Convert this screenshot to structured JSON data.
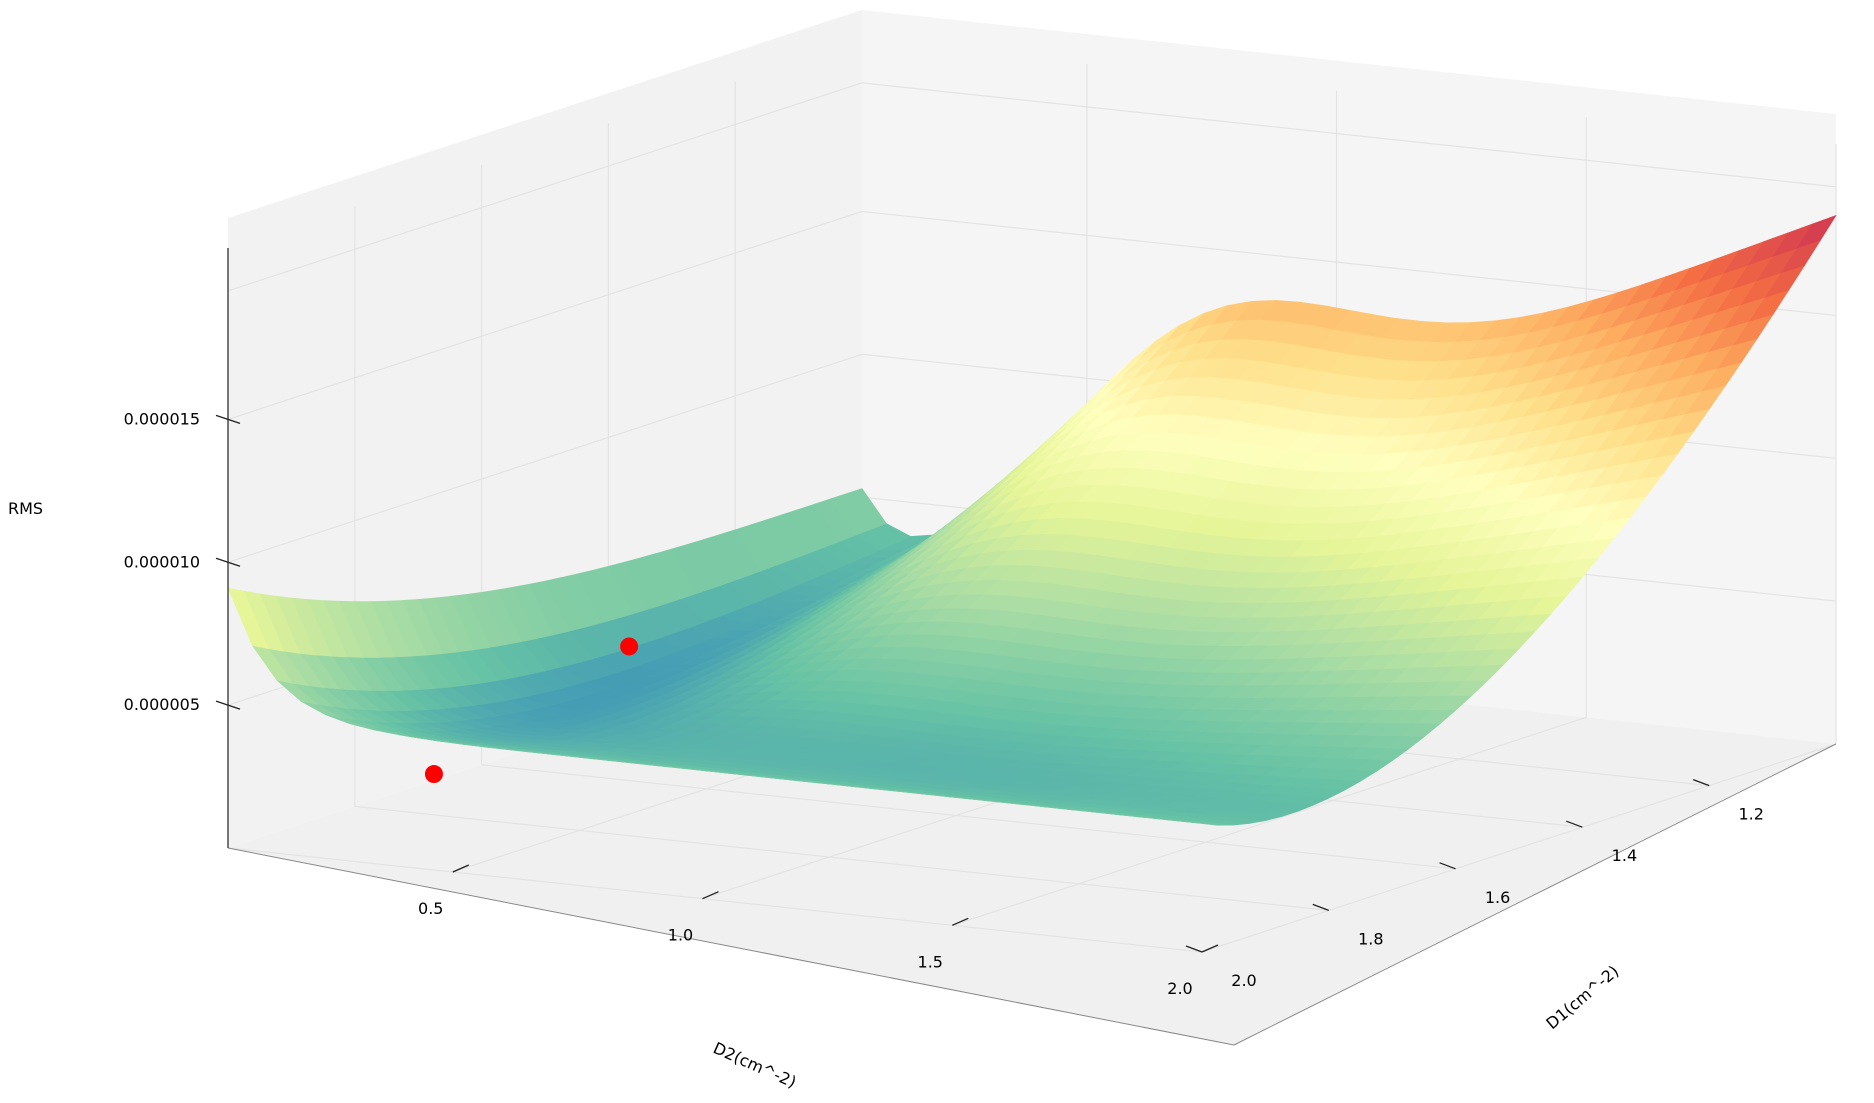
{
  "chart_data": {
    "type": "surface",
    "zlabel": "RMS",
    "xlabel": "D2(cm^-2)",
    "ylabel": "D1(cm^-2)",
    "z_ticks": [
      "0.000005",
      "0.000010",
      "0.000015"
    ],
    "x_ticks": [
      "0.5",
      "1.0",
      "1.5",
      "2.0"
    ],
    "y_ticks": [
      "1.2",
      "1.4",
      "1.6",
      "1.8",
      "2.0"
    ],
    "x_range": [
      0.05,
      2.0
    ],
    "y_range": [
      1.0,
      2.0
    ],
    "z_range": [
      0,
      2.1e-05
    ],
    "colormap": [
      "#5e4fa2",
      "#3288bd",
      "#66c2a5",
      "#abdda4",
      "#e6f598",
      "#ffffbf",
      "#fee08b",
      "#fdae61",
      "#f46d43",
      "#d53e4f",
      "#9e0142"
    ],
    "grid": true,
    "minima_points": [
      {
        "d2": 0.32,
        "d1": 1.58,
        "rms": 4.5e-06
      },
      {
        "d2": 0.31,
        "d1": 1.88,
        "rms": 2.2e-06
      }
    ],
    "minima_color": "#ff0000"
  }
}
